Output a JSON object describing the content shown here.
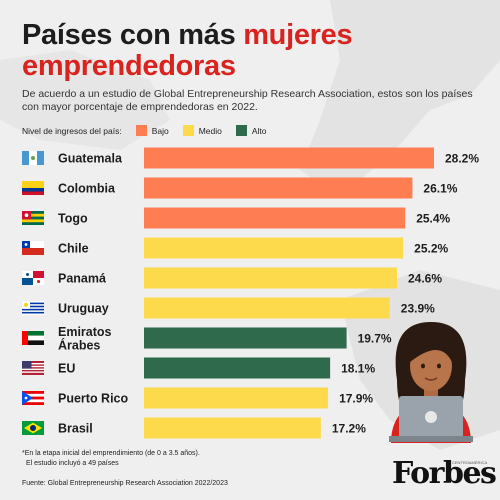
{
  "title": {
    "line1_plain": "Países con más ",
    "line1_accent": "mujeres",
    "line2": "emprendedoras"
  },
  "subtitle": "De acuerdo a un estudio de Global Entrepreneurship Research Association, estos son los países con mayor porcentaje de emprendedoras en 2022.",
  "legend": {
    "label": "Nivel de ingresos del país:",
    "items": [
      {
        "name": "Bajo",
        "color": "#ff7d52"
      },
      {
        "name": "Medio",
        "color": "#fdd94c"
      },
      {
        "name": "Alto",
        "color": "#2e6a4b"
      }
    ]
  },
  "chart_data": {
    "type": "bar",
    "orientation": "horizontal",
    "categories": [
      [
        "Guatemala"
      ],
      [
        "Colombia"
      ],
      [
        "Togo"
      ],
      [
        "Chile"
      ],
      [
        "Panamá"
      ],
      [
        "Uruguay"
      ],
      [
        "Emiratos",
        "Árabes"
      ],
      [
        "EU"
      ],
      [
        "Puerto Rico"
      ],
      [
        "Brasil"
      ]
    ],
    "values": [
      28.2,
      26.1,
      25.4,
      25.2,
      24.6,
      23.9,
      19.7,
      18.1,
      17.9,
      17.2
    ],
    "value_labels": [
      "28.2%",
      "26.1%",
      "25.4%",
      "25.2%",
      "24.6%",
      "23.9%",
      "19.7%",
      "18.1%",
      "17.9%",
      "17.2%"
    ],
    "income_level": [
      "Bajo",
      "Bajo",
      "Bajo",
      "Medio",
      "Medio",
      "Medio",
      "Alto",
      "Alto",
      "Medio",
      "Medio"
    ],
    "flags": [
      "guatemala-flag-icon",
      "colombia-flag-icon",
      "togo-flag-icon",
      "chile-flag-icon",
      "panama-flag-icon",
      "uruguay-flag-icon",
      "uae-flag-icon",
      "usa-flag-icon",
      "puerto-rico-flag-icon",
      "brazil-flag-icon"
    ],
    "xlim": [
      0,
      28.2
    ],
    "grid": false,
    "legend_position": "top-left"
  },
  "footnote": {
    "line1": "*En la etapa inicial del emprendimiento (de 0 a 3.5 años).",
    "line2": "El estudio incluyó a 49 países"
  },
  "source": "Fuente: Global Entrepreneurship Research Association 2022/2023",
  "brand": {
    "logo": "Forbes",
    "sub": "CENTROAMÉRICA"
  }
}
